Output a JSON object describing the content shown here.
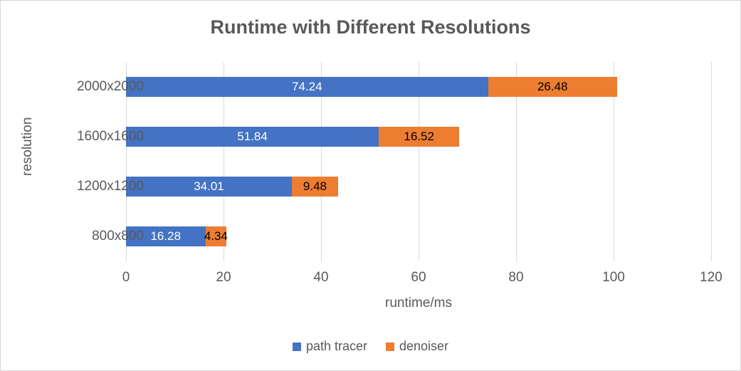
{
  "chart_data": {
    "type": "bar",
    "orientation": "horizontal-stacked",
    "title": "Runtime with Different Resolutions",
    "xlabel": "runtime/ms",
    "ylabel": "resolution",
    "categories": [
      "2000x2000",
      "1600x1600",
      "1200x1200",
      "800x800"
    ],
    "series": [
      {
        "name": "path tracer",
        "color": "#4472C4",
        "label_color": "#FFFFFF",
        "values": [
          74.24,
          51.84,
          34.01,
          16.28
        ]
      },
      {
        "name": "denoiser",
        "color": "#ED7D31",
        "label_color": "#000000",
        "values": [
          26.48,
          16.52,
          9.48,
          4.34
        ]
      }
    ],
    "xlim": [
      0,
      120
    ],
    "xticks": [
      0,
      20,
      40,
      60,
      80,
      100,
      120
    ],
    "grid": true,
    "gridline_color": "#D9D9D9",
    "text_color": "#595959",
    "legend_position": "bottom"
  }
}
